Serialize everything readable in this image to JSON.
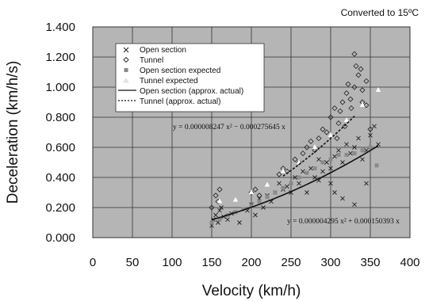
{
  "chart_data": {
    "type": "scatter",
    "note": "Converted to 15ºC",
    "xlabel": "Velocity (km/h)",
    "ylabel": "Deceleration (km/h/s)",
    "xlim": [
      0,
      400
    ],
    "ylim": [
      0,
      1.4
    ],
    "xticks": [
      "0",
      "50",
      "100",
      "150",
      "200",
      "250",
      "300",
      "350",
      "400"
    ],
    "yticks": [
      "0.000",
      "0.200",
      "0.400",
      "0.600",
      "0.800",
      "1.000",
      "1.200",
      "1.400"
    ],
    "grid": true,
    "legend_position": "top-left",
    "background_color": "#b5b5b5",
    "series": [
      {
        "name": "Open section",
        "marker": "x",
        "color": "#222222",
        "points": [
          [
            150,
            0.08
          ],
          [
            152,
            0.12
          ],
          [
            155,
            0.15
          ],
          [
            158,
            0.1
          ],
          [
            160,
            0.18
          ],
          [
            162,
            0.2
          ],
          [
            165,
            0.14
          ],
          [
            170,
            0.12
          ],
          [
            175,
            0.16
          ],
          [
            185,
            0.1
          ],
          [
            195,
            0.18
          ],
          [
            200,
            0.22
          ],
          [
            205,
            0.15
          ],
          [
            210,
            0.26
          ],
          [
            215,
            0.2
          ],
          [
            220,
            0.28
          ],
          [
            225,
            0.24
          ],
          [
            230,
            0.3
          ],
          [
            235,
            0.36
          ],
          [
            240,
            0.32
          ],
          [
            245,
            0.34
          ],
          [
            250,
            0.3
          ],
          [
            255,
            0.4
          ],
          [
            260,
            0.36
          ],
          [
            265,
            0.44
          ],
          [
            270,
            0.3
          ],
          [
            275,
            0.46
          ],
          [
            280,
            0.4
          ],
          [
            285,
            0.52
          ],
          [
            290,
            0.44
          ],
          [
            295,
            0.5
          ],
          [
            300,
            0.46
          ],
          [
            305,
            0.54
          ],
          [
            310,
            0.58
          ],
          [
            315,
            0.5
          ],
          [
            320,
            0.62
          ],
          [
            325,
            0.56
          ],
          [
            330,
            0.6
          ],
          [
            335,
            0.66
          ],
          [
            340,
            0.52
          ],
          [
            345,
            0.58
          ],
          [
            350,
            0.68
          ],
          [
            355,
            0.74
          ],
          [
            360,
            0.62
          ],
          [
            305,
            0.3
          ],
          [
            315,
            0.26
          ],
          [
            330,
            0.22
          ],
          [
            345,
            0.36
          ],
          [
            300,
            0.36
          ],
          [
            285,
            0.38
          ]
        ]
      },
      {
        "name": "Tunnel",
        "marker": "diamond",
        "color": "#222222",
        "points": [
          [
            150,
            0.2
          ],
          [
            155,
            0.28
          ],
          [
            160,
            0.32
          ],
          [
            158,
            0.24
          ],
          [
            200,
            0.3
          ],
          [
            205,
            0.32
          ],
          [
            210,
            0.28
          ],
          [
            235,
            0.42
          ],
          [
            240,
            0.46
          ],
          [
            245,
            0.44
          ],
          [
            255,
            0.52
          ],
          [
            260,
            0.5
          ],
          [
            265,
            0.56
          ],
          [
            270,
            0.6
          ],
          [
            275,
            0.64
          ],
          [
            280,
            0.58
          ],
          [
            285,
            0.66
          ],
          [
            290,
            0.72
          ],
          [
            295,
            0.7
          ],
          [
            300,
            0.8
          ],
          [
            305,
            0.86
          ],
          [
            310,
            0.76
          ],
          [
            315,
            0.9
          ],
          [
            320,
            0.96
          ],
          [
            325,
            0.92
          ],
          [
            330,
            1.0
          ],
          [
            335,
            1.08
          ],
          [
            340,
            0.98
          ],
          [
            345,
            1.04
          ],
          [
            330,
            1.22
          ],
          [
            332,
            1.14
          ],
          [
            338,
            1.12
          ],
          [
            322,
            1.02
          ],
          [
            312,
            0.84
          ],
          [
            318,
            0.74
          ],
          [
            340,
            0.9
          ],
          [
            345,
            0.88
          ],
          [
            350,
            0.72
          ],
          [
            326,
            0.86
          ],
          [
            308,
            0.66
          ]
        ]
      },
      {
        "name": "Open section expected",
        "marker": "square",
        "color": "#8a8a8a",
        "points": [
          [
            150,
            0.1
          ],
          [
            160,
            0.12
          ],
          [
            170,
            0.15
          ],
          [
            180,
            0.17
          ],
          [
            190,
            0.19
          ],
          [
            200,
            0.21
          ],
          [
            210,
            0.24
          ],
          [
            220,
            0.27
          ],
          [
            230,
            0.3
          ],
          [
            240,
            0.33
          ],
          [
            250,
            0.36
          ],
          [
            260,
            0.4
          ],
          [
            270,
            0.43
          ],
          [
            280,
            0.46
          ],
          [
            290,
            0.5
          ],
          [
            300,
            0.52
          ],
          [
            310,
            0.55
          ],
          [
            320,
            0.55
          ],
          [
            330,
            0.56
          ],
          [
            340,
            0.58
          ],
          [
            350,
            0.6
          ],
          [
            358,
            0.48
          ]
        ]
      },
      {
        "name": "Tunnel expected",
        "marker": "triangle",
        "color": "#ffffff",
        "points": [
          [
            160,
            0.24
          ],
          [
            180,
            0.25
          ],
          [
            200,
            0.3
          ],
          [
            220,
            0.35
          ],
          [
            240,
            0.44
          ],
          [
            260,
            0.5
          ],
          [
            280,
            0.6
          ],
          [
            300,
            0.68
          ],
          [
            320,
            0.78
          ],
          [
            340,
            0.88
          ],
          [
            360,
            0.98
          ]
        ]
      }
    ],
    "curves": [
      {
        "name": "Open section (approx. actual)",
        "equation": "y = 0.000004295 x² + 0.000150393 x",
        "a": 4.295e-06,
        "b": 0.000150393,
        "x_range": [
          150,
          360
        ],
        "style": "solid"
      },
      {
        "name": "Tunnel (approx. actual)",
        "equation": "y = 0.000008247 x² − 0.000275645 x",
        "a": 8.247e-06,
        "b": -0.000275645,
        "x_range": [
          240,
          330
        ],
        "style": "dashed"
      }
    ]
  }
}
